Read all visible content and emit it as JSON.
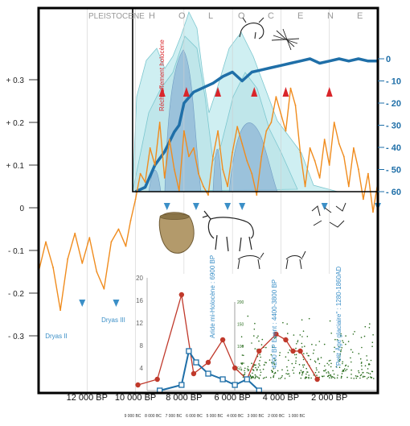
{
  "chart_data": [
    {
      "type": "line",
      "title": "",
      "xlabel": "",
      "ylabel": "",
      "x_unit": "BP",
      "xlim": [
        14000,
        0
      ],
      "x_tick_labels": [
        "12 000 BP",
        "10 000 BP",
        "8 000 BP",
        "6 000 BP",
        "4 000 BP",
        "2 000 BP"
      ],
      "x_ticks": [
        12000,
        10000,
        8000,
        6000,
        4000,
        2000
      ],
      "bc_tick_labels": [
        "9 000 BC",
        "8 000 BC",
        "7 000 BC",
        "6 000 BC",
        "5 000 BC",
        "4 000 BC",
        "3 000 BC",
        "2 000 BC",
        "1 000 BC"
      ],
      "period_labels": [
        "PLEISTOCENE",
        "H",
        "O",
        "L",
        "O",
        "C",
        "E",
        "N",
        "E"
      ],
      "left_axis": {
        "ylim": [
          -0.35,
          0.35
        ],
        "tick_labels": [
          "+ 0.3",
          "+ 0.2",
          "+ 0.1",
          "0",
          "- 0.1",
          "- 0.2",
          "- 0.3"
        ],
        "ticks": [
          0.3,
          0.2,
          0.1,
          0,
          -0.1,
          -0.2,
          -0.3
        ]
      },
      "right_axis": {
        "ylim": [
          -63,
          3
        ],
        "tick_labels": [
          "0",
          "- 10",
          "- 20",
          "- 30",
          "- 40",
          "- 50",
          "- 60"
        ],
        "ticks": [
          0,
          -10,
          -20,
          -30,
          -40,
          -50,
          -60
        ]
      },
      "series": [
        {
          "role": "orange_temperature",
          "color": "#f08c1e",
          "x": [
            14000,
            13700,
            13400,
            13100,
            12800,
            12500,
            12200,
            11900,
            11600,
            11300,
            11000,
            10700,
            10400,
            10200,
            10000,
            9800,
            9600,
            9400,
            9200,
            9000,
            8800,
            8600,
            8400,
            8200,
            8000,
            7800,
            7600,
            7400,
            7200,
            7000,
            6800,
            6600,
            6400,
            6200,
            6000,
            5800,
            5600,
            5400,
            5200,
            5000,
            4800,
            4600,
            4400,
            4200,
            4000,
            3800,
            3600,
            3400,
            3200,
            3000,
            2800,
            2600,
            2400,
            2200,
            2000,
            1800,
            1600,
            1400,
            1200,
            1000,
            800,
            600,
            400,
            200,
            0
          ],
          "y": [
            -0.15,
            -0.08,
            -0.14,
            -0.24,
            -0.12,
            -0.06,
            -0.13,
            -0.07,
            -0.15,
            -0.19,
            -0.08,
            -0.05,
            -0.09,
            -0.03,
            0.02,
            0.08,
            0.06,
            0.14,
            0.1,
            0.2,
            0.07,
            0.16,
            0.09,
            0.04,
            0.18,
            0.12,
            0.14,
            0.08,
            0.05,
            0.03,
            0.12,
            0.18,
            0.09,
            0.05,
            0.13,
            0.19,
            0.15,
            0.11,
            0.08,
            0.03,
            0.12,
            0.18,
            0.2,
            0.26,
            0.22,
            0.18,
            0.28,
            0.24,
            0.13,
            0.05,
            0.14,
            0.11,
            0.07,
            0.16,
            0.1,
            0.2,
            0.15,
            0.12,
            0.05,
            0.14,
            0.09,
            0.02,
            0.08,
            -0.01,
            0.06
          ]
        },
        {
          "role": "blue_ice_volume",
          "color": "#1f6fa8",
          "x": [
            10000,
            9600,
            9200,
            8800,
            8400,
            8200,
            8000,
            7600,
            7200,
            6800,
            6400,
            6000,
            5600,
            5200,
            4800,
            4400,
            4000,
            3600,
            3200,
            2800,
            2400,
            2000,
            1600,
            1200,
            800,
            400,
            0
          ],
          "y": [
            -60,
            -58,
            -48,
            -42,
            -33,
            -30,
            -20,
            -15,
            -13,
            -11,
            -8,
            -6,
            -10,
            -6,
            -5,
            -4,
            -3,
            -2,
            -1,
            0,
            -2,
            -1,
            0,
            -1,
            0,
            -1,
            -1
          ]
        }
      ],
      "markers": {
        "red_peaks_x": [
          8900,
          7900,
          6600,
          5100,
          3800,
          2000
        ],
        "blue_arrows_x": [
          12200,
          10800,
          8700,
          7500,
          6200,
          5600,
          2200,
          0
        ]
      },
      "annotations": [
        "Dryas II",
        "Dryas III",
        "Réchauffement holocène",
        "Aride mi-Holocène : 6900 BP",
        "4200 BP Event : 4400-3800 BP",
        "\"Petit Âge glaciaire\" : 1280-1860AD"
      ]
    },
    {
      "type": "line",
      "title": "",
      "xlabel": "",
      "ylabel": "",
      "ylim": [
        0,
        20
      ],
      "y_tick_labels": [
        "20",
        "16",
        "12",
        "8",
        "4"
      ],
      "y_ticks": [
        20,
        16,
        12,
        8,
        4
      ],
      "series": [
        {
          "role": "red_circles",
          "color": "#c0392b",
          "x": [
            9900,
            9100,
            8100,
            7600,
            7000,
            6400,
            5900,
            5400,
            4900,
            4200,
            3800,
            3500,
            3200,
            2500
          ],
          "y": [
            1,
            2,
            17,
            3,
            5,
            9,
            4,
            2,
            7,
            10,
            9,
            7,
            7,
            2
          ]
        },
        {
          "role": "blue_squares",
          "color": "#1f6fa8",
          "x": [
            9000,
            8100,
            7800,
            7500,
            7000,
            6400,
            5900,
            5400,
            4900
          ],
          "y": [
            0,
            1,
            7,
            5,
            3,
            2,
            1,
            2,
            0
          ]
        }
      ]
    },
    {
      "type": "scatter",
      "title": "",
      "xlabel": "",
      "ylabel": "",
      "ylim": [
        0,
        200
      ],
      "y_tick_labels": [
        "200",
        "150",
        "100",
        "50"
      ],
      "y_ticks": [
        200,
        150,
        100,
        50
      ],
      "series": [
        {
          "role": "green_dots",
          "color": "#2a6d1e"
        }
      ]
    }
  ]
}
